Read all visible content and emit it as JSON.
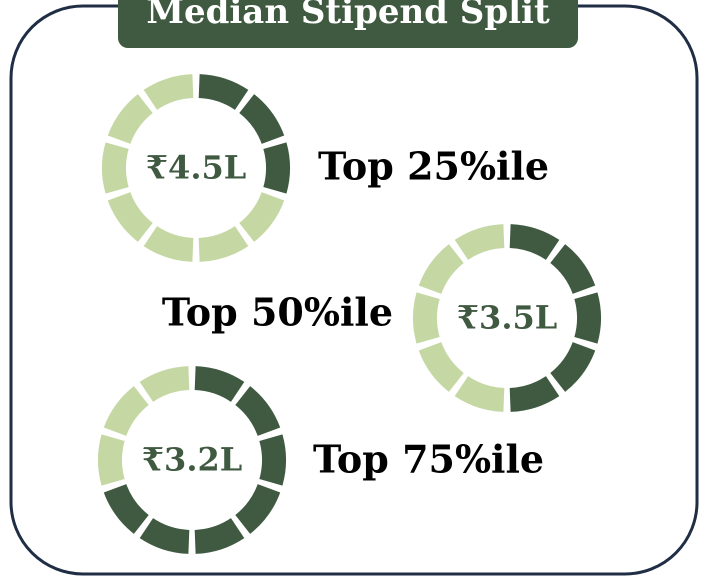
{
  "title": "Median Stipend Split",
  "segments": 10,
  "dark_color": "#3f5a41",
  "light_color": "#c5d8a4",
  "donuts": [
    {
      "value": "₹4.5L",
      "label": "Top 25%ile",
      "filled": 3
    },
    {
      "value": "₹3.5L",
      "label": "Top 50%ile",
      "filled": 5
    },
    {
      "value": "₹3.2L",
      "label": "Top 75%ile",
      "filled": 7
    }
  ]
}
